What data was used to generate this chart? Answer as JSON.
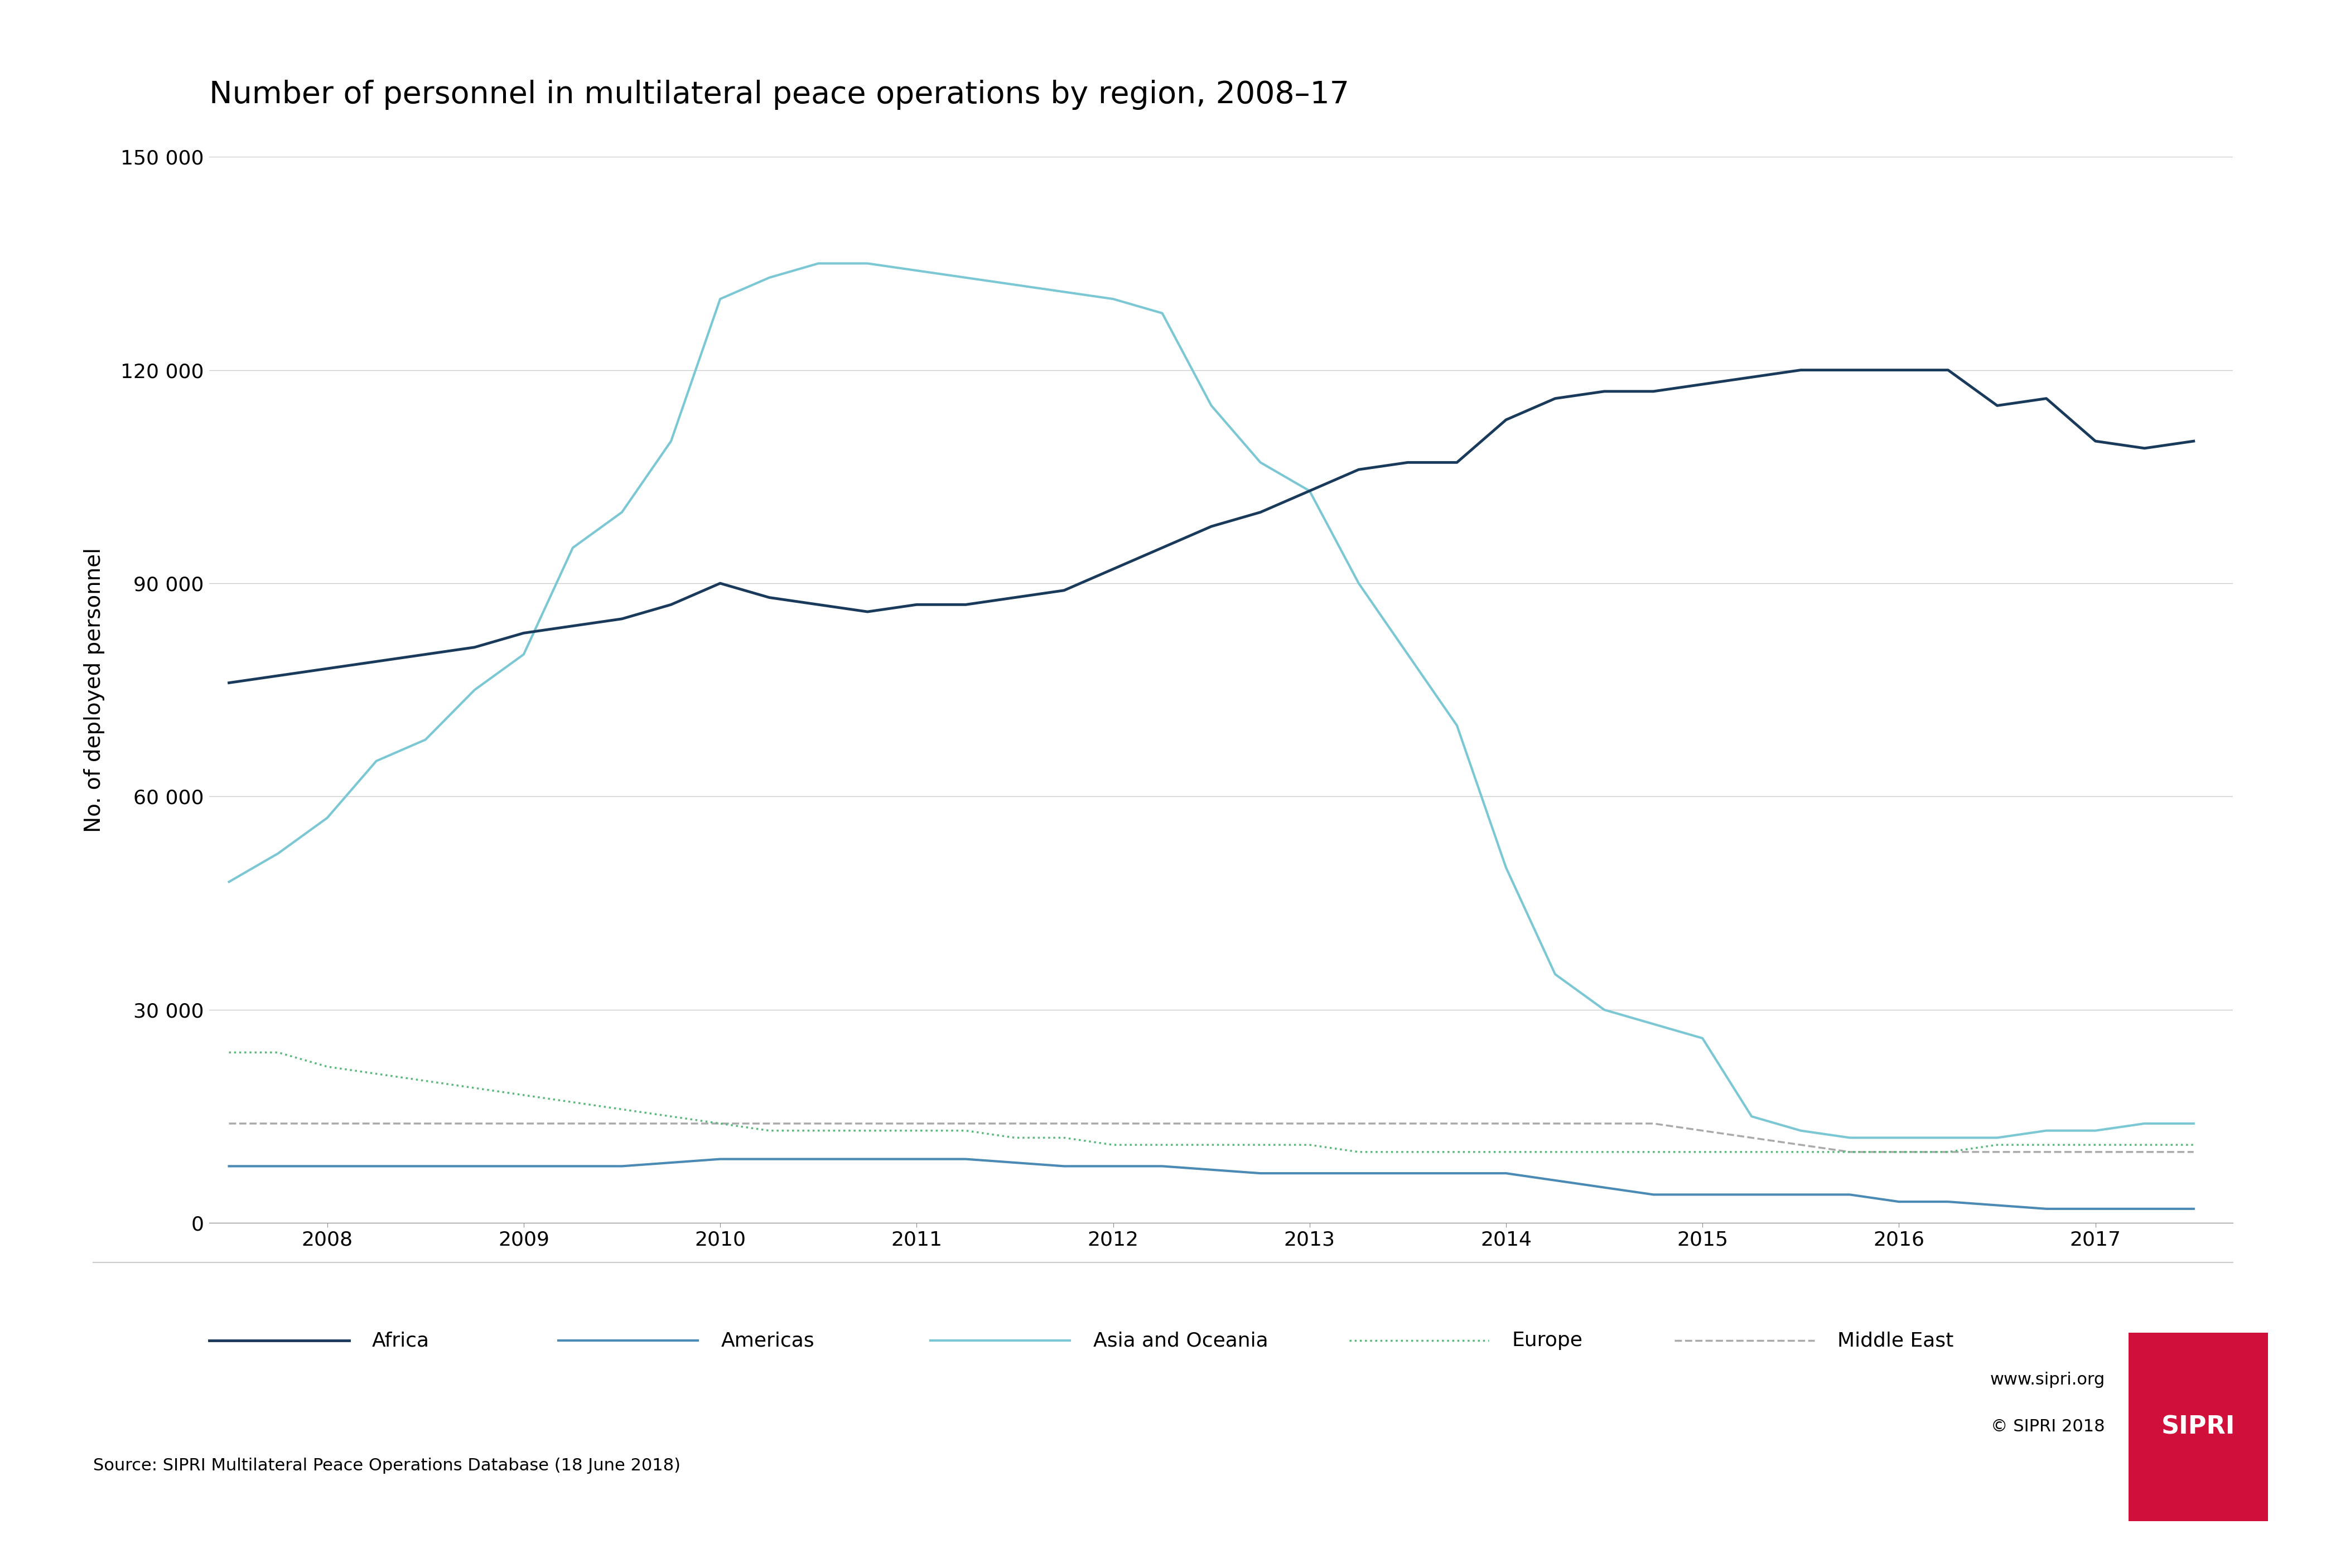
{
  "title": "Number of personnel in multilateral peace operations by region, 2008–17",
  "ylabel": "No. of deployed personnel",
  "source": "Source: SIPRI Multilateral Peace Operations Database (18 June 2018)",
  "website": "www.sipri.org",
  "copyright": "© SIPRI 2018",
  "ylim": [
    0,
    150000
  ],
  "yticks": [
    0,
    30000,
    60000,
    90000,
    120000,
    150000
  ],
  "ytick_labels": [
    "0",
    "30 000",
    "60 000",
    "90 000",
    "120 000",
    "150 000"
  ],
  "background_color": "#ffffff",
  "sipri_red": "#d0103a",
  "series": {
    "Africa": {
      "color": "#1a3a5c",
      "linewidth": 2.5,
      "linestyle": "solid",
      "label": "Africa"
    },
    "Americas": {
      "color": "#4a8ab5",
      "linewidth": 2.5,
      "linestyle": "solid",
      "label": "Americas"
    },
    "Asia and Oceania": {
      "color": "#7bc8d4",
      "linewidth": 2.5,
      "linestyle": "solid",
      "label": "Asia and Oceania"
    },
    "Europe": {
      "color": "#5ab87a",
      "linewidth": 2.0,
      "linestyle": "dotted",
      "label": "Europe"
    },
    "Middle East": {
      "color": "#aaaaaa",
      "linewidth": 2.0,
      "linestyle": "dashed",
      "label": "Middle East"
    }
  },
  "data": {
    "Africa": {
      "x": [
        2007.5,
        2007.75,
        2008.0,
        2008.25,
        2008.5,
        2008.75,
        2009.0,
        2009.25,
        2009.5,
        2009.75,
        2010.0,
        2010.25,
        2010.5,
        2010.75,
        2011.0,
        2011.25,
        2011.5,
        2011.75,
        2012.0,
        2012.25,
        2012.5,
        2012.75,
        2013.0,
        2013.25,
        2013.5,
        2013.75,
        2014.0,
        2014.25,
        2014.5,
        2014.75,
        2015.0,
        2015.25,
        2015.5,
        2015.75,
        2016.0,
        2016.25,
        2016.5,
        2016.75,
        2017.0,
        2017.25,
        2017.5
      ],
      "y": [
        76000,
        77000,
        78000,
        79000,
        80000,
        81000,
        83000,
        84000,
        85000,
        87000,
        90000,
        88000,
        87000,
        86000,
        87000,
        87000,
        88000,
        89000,
        92000,
        95000,
        98000,
        100000,
        103000,
        106000,
        107000,
        107000,
        113000,
        116000,
        117000,
        117000,
        118000,
        119000,
        120000,
        120000,
        120000,
        120000,
        115000,
        116000,
        110000,
        109000,
        110000
      ]
    },
    "Americas": {
      "x": [
        2007.5,
        2007.75,
        2008.0,
        2008.25,
        2008.5,
        2008.75,
        2009.0,
        2009.25,
        2009.5,
        2009.75,
        2010.0,
        2010.25,
        2010.5,
        2010.75,
        2011.0,
        2011.25,
        2011.5,
        2011.75,
        2012.0,
        2012.25,
        2012.5,
        2012.75,
        2013.0,
        2013.25,
        2013.5,
        2013.75,
        2014.0,
        2014.25,
        2014.5,
        2014.75,
        2015.0,
        2015.25,
        2015.5,
        2015.75,
        2016.0,
        2016.25,
        2016.5,
        2016.75,
        2017.0,
        2017.25,
        2017.5
      ],
      "y": [
        8000,
        8000,
        8000,
        8000,
        8000,
        8000,
        8000,
        8000,
        8000,
        8500,
        9000,
        9000,
        9000,
        9000,
        9000,
        9000,
        8500,
        8000,
        8000,
        8000,
        7500,
        7000,
        7000,
        7000,
        7000,
        7000,
        7000,
        6000,
        5000,
        4000,
        4000,
        4000,
        4000,
        4000,
        3000,
        3000,
        2500,
        2000,
        2000,
        2000,
        2000
      ]
    },
    "Asia and Oceania": {
      "x": [
        2007.5,
        2007.75,
        2008.0,
        2008.25,
        2008.5,
        2008.75,
        2009.0,
        2009.25,
        2009.5,
        2009.75,
        2010.0,
        2010.25,
        2010.5,
        2010.75,
        2011.0,
        2011.25,
        2011.5,
        2011.75,
        2012.0,
        2012.25,
        2012.5,
        2012.75,
        2013.0,
        2013.25,
        2013.5,
        2013.75,
        2014.0,
        2014.25,
        2014.5,
        2014.75,
        2015.0,
        2015.25,
        2015.5,
        2015.75,
        2016.0,
        2016.25,
        2016.5,
        2016.75,
        2017.0,
        2017.25,
        2017.5
      ],
      "y": [
        48000,
        52000,
        57000,
        65000,
        68000,
        75000,
        80000,
        95000,
        100000,
        110000,
        130000,
        133000,
        135000,
        135000,
        134000,
        133000,
        132000,
        131000,
        130000,
        128000,
        115000,
        107000,
        103000,
        90000,
        80000,
        70000,
        50000,
        35000,
        30000,
        28000,
        26000,
        15000,
        13000,
        12000,
        12000,
        12000,
        12000,
        13000,
        13000,
        14000,
        14000
      ]
    },
    "Europe": {
      "x": [
        2007.5,
        2007.75,
        2008.0,
        2008.25,
        2008.5,
        2008.75,
        2009.0,
        2009.25,
        2009.5,
        2009.75,
        2010.0,
        2010.25,
        2010.5,
        2010.75,
        2011.0,
        2011.25,
        2011.5,
        2011.75,
        2012.0,
        2012.25,
        2012.5,
        2012.75,
        2013.0,
        2013.25,
        2013.5,
        2013.75,
        2014.0,
        2014.25,
        2014.5,
        2014.75,
        2015.0,
        2015.25,
        2015.5,
        2015.75,
        2016.0,
        2016.25,
        2016.5,
        2016.75,
        2017.0,
        2017.25,
        2017.5
      ],
      "y": [
        24000,
        24000,
        22000,
        21000,
        20000,
        19000,
        18000,
        17000,
        16000,
        15000,
        14000,
        13000,
        13000,
        13000,
        13000,
        13000,
        12000,
        12000,
        11000,
        11000,
        11000,
        11000,
        11000,
        10000,
        10000,
        10000,
        10000,
        10000,
        10000,
        10000,
        10000,
        10000,
        10000,
        10000,
        10000,
        10000,
        11000,
        11000,
        11000,
        11000,
        11000
      ]
    },
    "Middle East": {
      "x": [
        2007.5,
        2007.75,
        2008.0,
        2008.25,
        2008.5,
        2008.75,
        2009.0,
        2009.25,
        2009.5,
        2009.75,
        2010.0,
        2010.25,
        2010.5,
        2010.75,
        2011.0,
        2011.25,
        2011.5,
        2011.75,
        2012.0,
        2012.25,
        2012.5,
        2012.75,
        2013.0,
        2013.25,
        2013.5,
        2013.75,
        2014.0,
        2014.25,
        2014.5,
        2014.75,
        2015.0,
        2015.25,
        2015.5,
        2015.75,
        2016.0,
        2016.25,
        2016.5,
        2016.75,
        2017.0,
        2017.25,
        2017.5
      ],
      "y": [
        14000,
        14000,
        14000,
        14000,
        14000,
        14000,
        14000,
        14000,
        14000,
        14000,
        14000,
        14000,
        14000,
        14000,
        14000,
        14000,
        14000,
        14000,
        14000,
        14000,
        14000,
        14000,
        14000,
        14000,
        14000,
        14000,
        14000,
        14000,
        14000,
        14000,
        13000,
        12000,
        11000,
        10000,
        10000,
        10000,
        10000,
        10000,
        10000,
        10000,
        10000
      ]
    }
  }
}
